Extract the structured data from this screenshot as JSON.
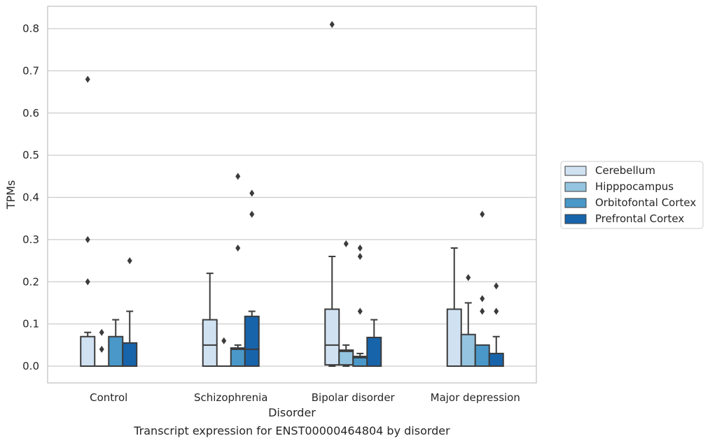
{
  "chart_data": {
    "type": "box",
    "xlabel": "Disorder",
    "ylabel": "TPMs",
    "caption": "Transcript expression for ENST00000464804 by disorder",
    "ylim": [
      -0.04,
      0.85
    ],
    "yticks": [
      0.0,
      0.1,
      0.2,
      0.3,
      0.4,
      0.5,
      0.6,
      0.7,
      0.8
    ],
    "categories": [
      "Control",
      "Schizophrenia",
      "Bipolar disorder",
      "Major depression"
    ],
    "grid": "horizontal",
    "legend_position": "right-center",
    "series": [
      {
        "name": "Cerebellum",
        "color": "#d0e1f2",
        "boxes": [
          {
            "q1": 0.0,
            "median": 0.0,
            "q3": 0.07,
            "whisker_low": 0.0,
            "whisker_high": 0.08,
            "outliers": [
              0.2,
              0.3,
              0.68
            ]
          },
          {
            "q1": 0.0,
            "median": 0.05,
            "q3": 0.11,
            "whisker_low": 0.0,
            "whisker_high": 0.22,
            "outliers": []
          },
          {
            "q1": 0.003,
            "median": 0.05,
            "q3": 0.135,
            "whisker_low": 0.0,
            "whisker_high": 0.26,
            "outliers": [
              0.81
            ]
          },
          {
            "q1": 0.0,
            "median": 0.0,
            "q3": 0.135,
            "whisker_low": 0.0,
            "whisker_high": 0.28,
            "outliers": []
          }
        ]
      },
      {
        "name": "Hipppocampus",
        "color": "#94c4df",
        "boxes": [
          {
            "q1": 0.0,
            "median": 0.0,
            "q3": 0.0,
            "whisker_low": 0.0,
            "whisker_high": 0.0,
            "outliers": [
              0.04,
              0.08
            ]
          },
          {
            "q1": 0.0,
            "median": 0.0,
            "q3": 0.0,
            "whisker_low": 0.0,
            "whisker_high": 0.0,
            "outliers": [
              0.06
            ]
          },
          {
            "q1": 0.003,
            "median": 0.035,
            "q3": 0.038,
            "whisker_low": 0.0,
            "whisker_high": 0.05,
            "outliers": [
              0.29
            ]
          },
          {
            "q1": 0.0,
            "median": 0.0,
            "q3": 0.075,
            "whisker_low": 0.0,
            "whisker_high": 0.15,
            "outliers": [
              0.21
            ]
          }
        ]
      },
      {
        "name": "Orbitofontal Cortex",
        "color": "#4a98c9",
        "boxes": [
          {
            "q1": 0.0,
            "median": 0.0,
            "q3": 0.07,
            "whisker_low": 0.0,
            "whisker_high": 0.11,
            "outliers": []
          },
          {
            "q1": 0.0,
            "median": 0.04,
            "q3": 0.043,
            "whisker_low": 0.0,
            "whisker_high": 0.05,
            "outliers": [
              0.28,
              0.45
            ]
          },
          {
            "q1": 0.0,
            "median": 0.02,
            "q3": 0.023,
            "whisker_low": 0.0,
            "whisker_high": 0.03,
            "outliers": [
              0.13,
              0.26,
              0.28
            ]
          },
          {
            "q1": 0.0,
            "median": 0.0,
            "q3": 0.05,
            "whisker_low": 0.0,
            "whisker_high": 0.05,
            "outliers": [
              0.13,
              0.16,
              0.36
            ]
          }
        ]
      },
      {
        "name": "Prefrontal Cortex",
        "color": "#1764ab",
        "boxes": [
          {
            "q1": 0.0,
            "median": 0.0,
            "q3": 0.055,
            "whisker_low": 0.0,
            "whisker_high": 0.13,
            "outliers": [
              0.25
            ]
          },
          {
            "q1": 0.0,
            "median": 0.04,
            "q3": 0.118,
            "whisker_low": 0.0,
            "whisker_high": 0.13,
            "outliers": [
              0.36,
              0.41
            ]
          },
          {
            "q1": 0.0,
            "median": 0.0,
            "q3": 0.068,
            "whisker_low": 0.0,
            "whisker_high": 0.11,
            "outliers": []
          },
          {
            "q1": 0.0,
            "median": 0.0,
            "q3": 0.03,
            "whisker_low": 0.0,
            "whisker_high": 0.07,
            "outliers": [
              0.13,
              0.19
            ]
          }
        ]
      }
    ]
  }
}
